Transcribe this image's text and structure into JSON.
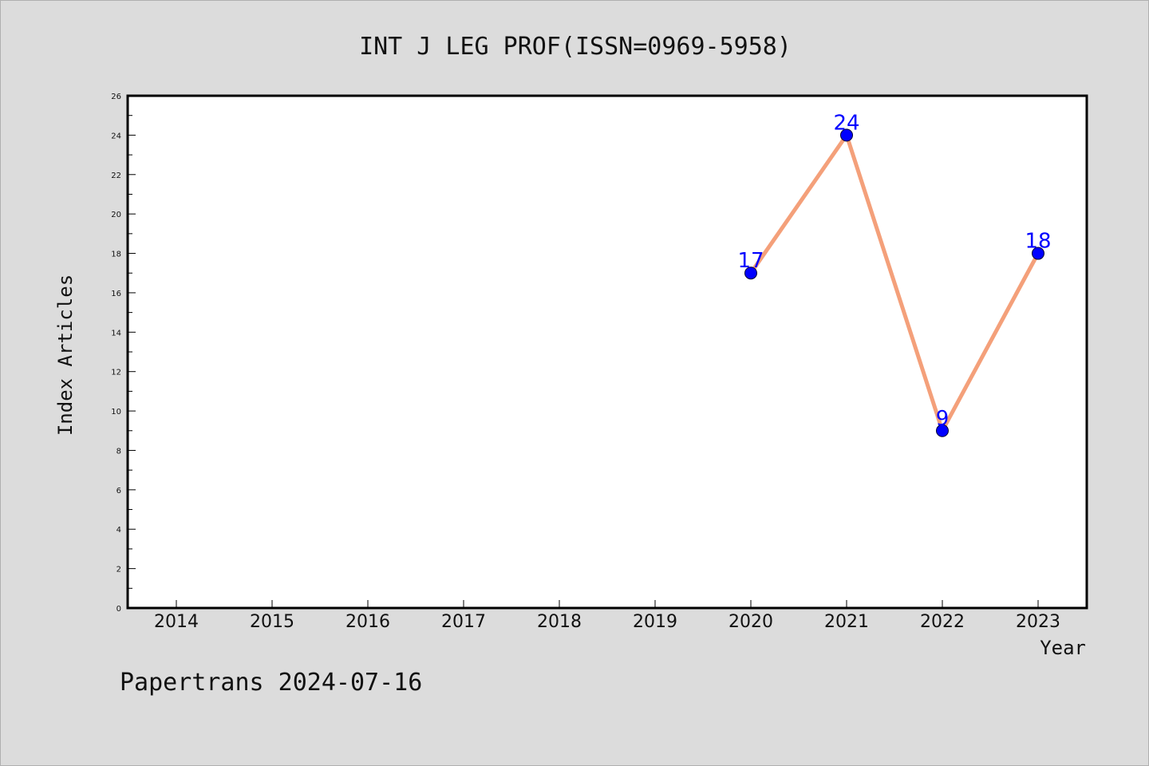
{
  "chart_data": {
    "type": "line",
    "title": "INT J LEG PROF(ISSN=0969-5958)",
    "xlabel": "Year",
    "ylabel": "Index Articles",
    "footer": "Papertrans 2024-07-16",
    "categories": [
      "2014",
      "2015",
      "2016",
      "2017",
      "2018",
      "2019",
      "2020",
      "2021",
      "2022",
      "2023"
    ],
    "yticks": [
      "0",
      "2",
      "4",
      "6",
      "8",
      "10",
      "12",
      "14",
      "16",
      "18",
      "20",
      "22",
      "24",
      "26"
    ],
    "ylim": [
      0,
      26
    ],
    "grid": false,
    "series": [
      {
        "points": [
          {
            "x": "2020",
            "y": 17
          },
          {
            "x": "2021",
            "y": 24
          },
          {
            "x": "2022",
            "y": 9
          },
          {
            "x": "2023",
            "y": 18
          }
        ],
        "labels": [
          "17",
          "24",
          "9",
          "18"
        ],
        "line_color": "#f4a07a",
        "marker_color": "#0000ff",
        "label_color": "#0000ff"
      }
    ]
  },
  "colors": {
    "background": "#dcdcdc",
    "plot_background": "#ffffff",
    "axis": "#000000"
  }
}
